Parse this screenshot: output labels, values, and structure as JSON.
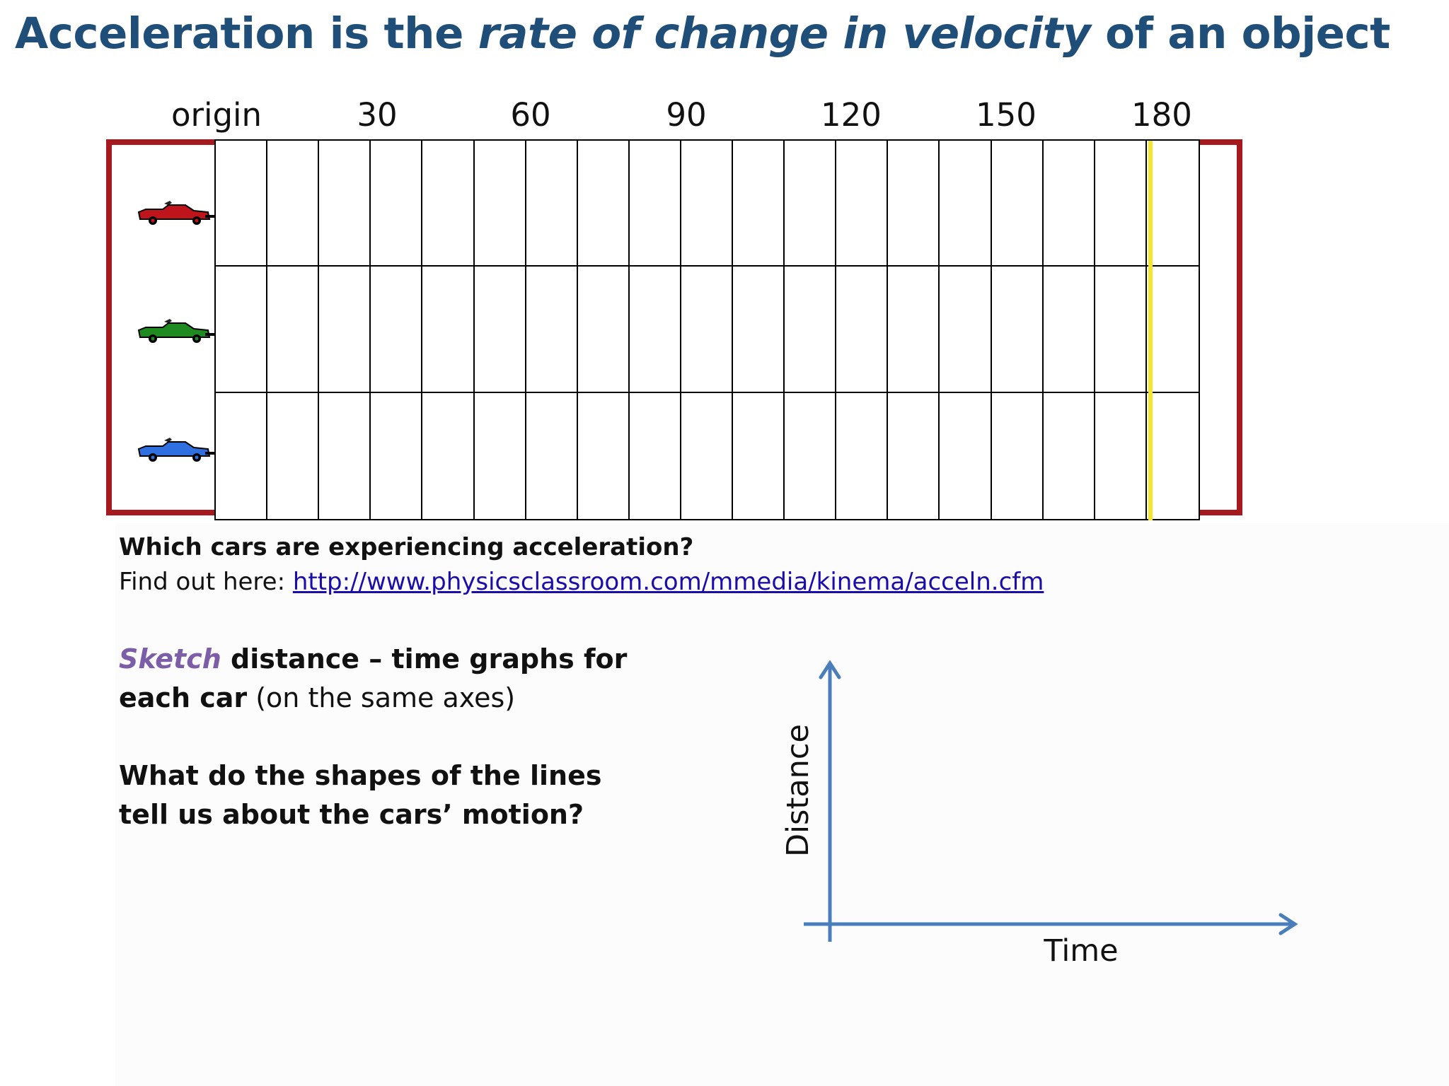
{
  "title": {
    "part1": "Acceleration is the ",
    "emphasis": "rate of change in velocity",
    "part2": " of an object"
  },
  "track": {
    "labels": [
      "origin",
      "30",
      "60",
      "90",
      "120",
      "150",
      "180"
    ],
    "cars": [
      {
        "color": "#c0141c",
        "icon": "red-car-icon"
      },
      {
        "color": "#1f8a1f",
        "icon": "green-car-icon"
      },
      {
        "color": "#2f6fe0",
        "icon": "blue-car-icon"
      }
    ],
    "frame_color": "#a6191e",
    "marker_color": "#f5e52b"
  },
  "question": "Which cars are experiencing acceleration?",
  "findout": {
    "prefix": "Find out here: ",
    "link": "http://www.physicsclassroom.com/mmedia/kinema/acceln.cfm"
  },
  "instructions": {
    "sketch": "Sketch",
    "line1_rest": " distance – time graphs for",
    "line2_bold": "each car",
    "line2_rest": " (on the same axes)",
    "question_line1": "What do the shapes of the lines",
    "question_line2": "tell us about the cars’ motion?"
  },
  "graph": {
    "y_label": "Distance",
    "x_label": "Time",
    "axis_color": "#4a7ebb"
  }
}
